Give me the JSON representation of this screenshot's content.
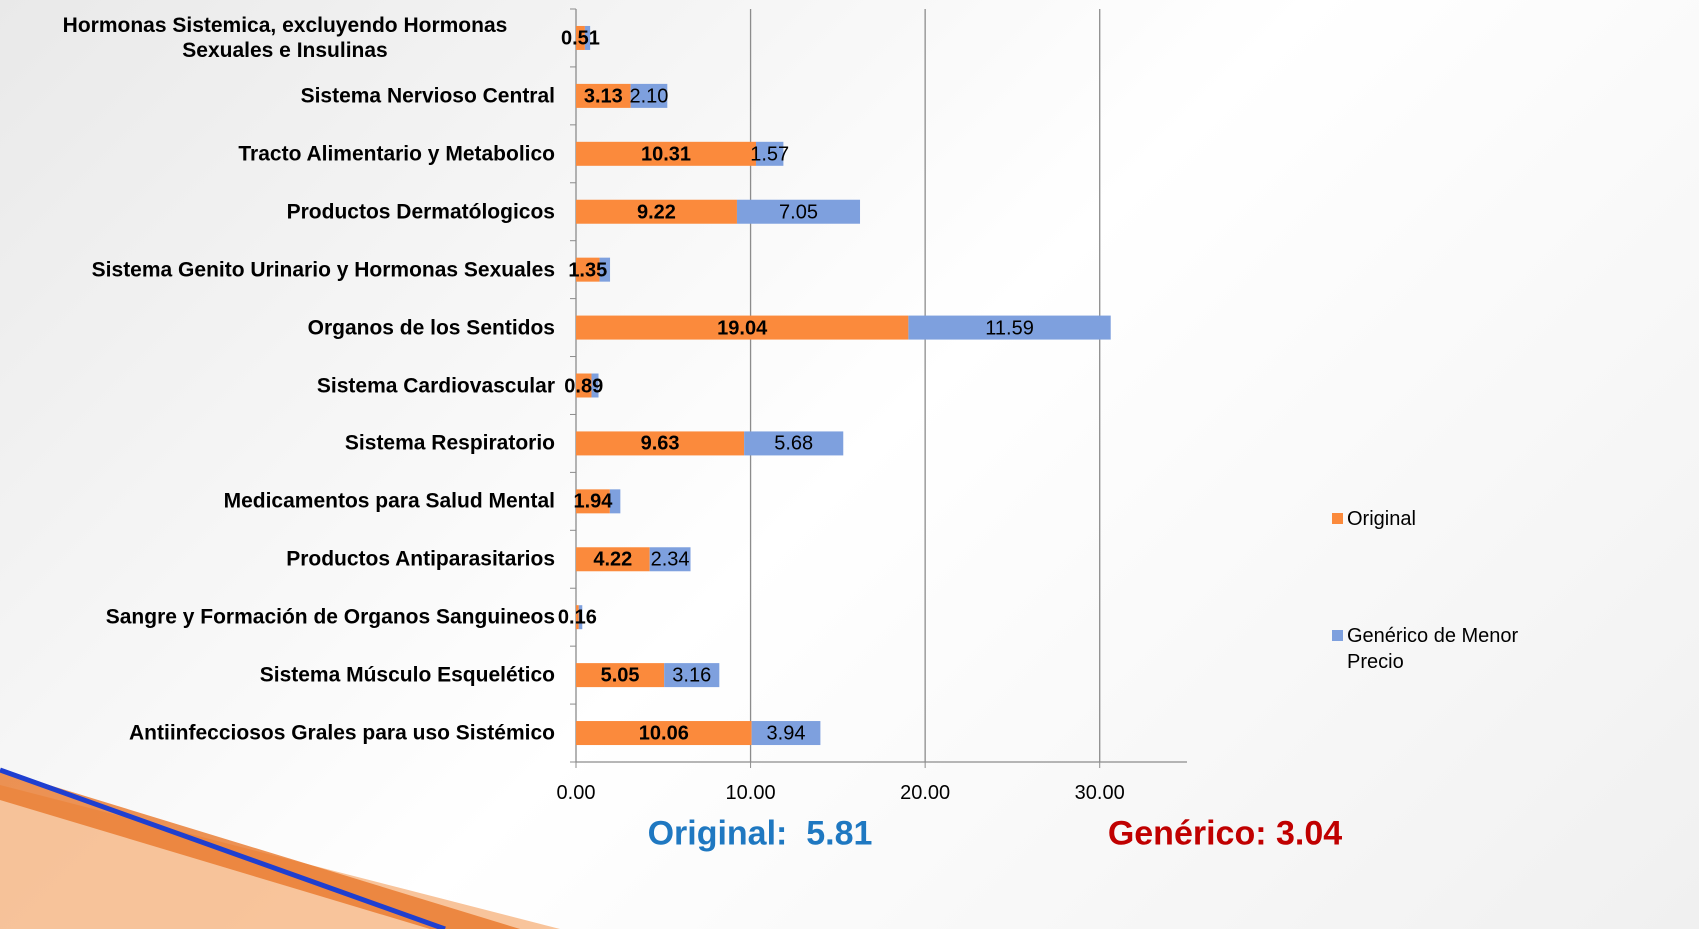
{
  "chart_data": {
    "type": "stacked-barh",
    "categories": [
      "Hormonas Sistemica, excluyendo Hormonas Sexuales e Insulinas",
      "Sistema Nervioso Central",
      "Tracto Alimentario y Metabolico",
      "Productos Dermatólogicos",
      "Sistema Genito Urinario y Hormonas Sexuales",
      "Organos de los Sentidos",
      "Sistema Cardiovascular",
      "Sistema Respiratorio",
      "Medicamentos para Salud Mental",
      "Productos Antiparasitarios",
      "Sangre y Formación de Organos Sanguineos",
      "Sistema Músculo Esquelético",
      "Antiinfecciosos Grales para uso Sistémico"
    ],
    "series": [
      {
        "name": "Original",
        "color": "#fb8a3c",
        "values": [
          0.51,
          3.13,
          10.31,
          9.22,
          1.35,
          19.04,
          0.89,
          9.63,
          1.94,
          4.22,
          0.16,
          5.05,
          10.06
        ]
      },
      {
        "name": "Genérico de Menor Precio",
        "color": "#7ea0de",
        "values": [
          0.3,
          2.1,
          1.57,
          7.05,
          0.6,
          11.59,
          0.4,
          5.68,
          0.6,
          2.34,
          0.2,
          3.16,
          3.94
        ],
        "value_labels": [
          null,
          "2.10",
          "1.57",
          "7.05",
          null,
          "11.59",
          null,
          "5.68",
          null,
          "2.34",
          null,
          "3.16",
          "3.94"
        ]
      }
    ],
    "xlim": [
      0,
      35
    ],
    "xticks": [
      {
        "value": 0,
        "label": "0.00"
      },
      {
        "value": 10,
        "label": "10.00"
      },
      {
        "value": 20,
        "label": "20.00"
      },
      {
        "value": 30,
        "label": "30.00"
      }
    ],
    "grid": true,
    "legend": "right",
    "annotations": [
      {
        "text": "Original:  5.81",
        "color": "#1f78c1"
      },
      {
        "text": "Genérico: 3.04",
        "color": "#c00000"
      }
    ]
  }
}
